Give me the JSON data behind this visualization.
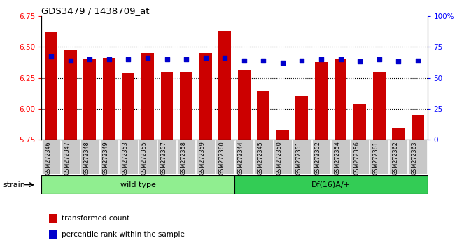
{
  "title": "GDS3479 / 1438709_at",
  "categories": [
    "GSM272346",
    "GSM272347",
    "GSM272348",
    "GSM272349",
    "GSM272353",
    "GSM272355",
    "GSM272357",
    "GSM272358",
    "GSM272359",
    "GSM272360",
    "GSM272344",
    "GSM272345",
    "GSM272350",
    "GSM272351",
    "GSM272352",
    "GSM272354",
    "GSM272356",
    "GSM272361",
    "GSM272362",
    "GSM272363"
  ],
  "bar_values": [
    6.62,
    6.48,
    6.4,
    6.41,
    6.29,
    6.45,
    6.3,
    6.3,
    6.45,
    6.63,
    6.31,
    6.14,
    5.83,
    6.1,
    6.38,
    6.4,
    6.04,
    6.3,
    5.84,
    5.95
  ],
  "percentile_values": [
    67,
    64,
    65,
    65,
    65,
    66,
    65,
    65,
    66,
    66,
    64,
    64,
    62,
    64,
    65,
    65,
    63,
    65,
    63,
    64
  ],
  "wild_type_count": 10,
  "df16_count": 10,
  "wild_type_label": "wild type",
  "df16_label": "Df(16)A/+",
  "strain_label": "strain",
  "legend_bar": "transformed count",
  "legend_dot": "percentile rank within the sample",
  "ylim_left": [
    5.75,
    6.75
  ],
  "ylim_right": [
    0,
    100
  ],
  "yticks_left": [
    5.75,
    6.0,
    6.25,
    6.5,
    6.75
  ],
  "yticks_right": [
    0,
    25,
    50,
    75,
    100
  ],
  "ytick_labels_right": [
    "0",
    "25",
    "50",
    "75",
    "100%"
  ],
  "bar_color": "#cc0000",
  "dot_color": "#0000cc",
  "wt_bg_light": "#c8f0c8",
  "wt_bg": "#90ee90",
  "df_bg": "#33cc55",
  "tick_label_bg": "#c8c8c8",
  "bar_width": 0.65
}
